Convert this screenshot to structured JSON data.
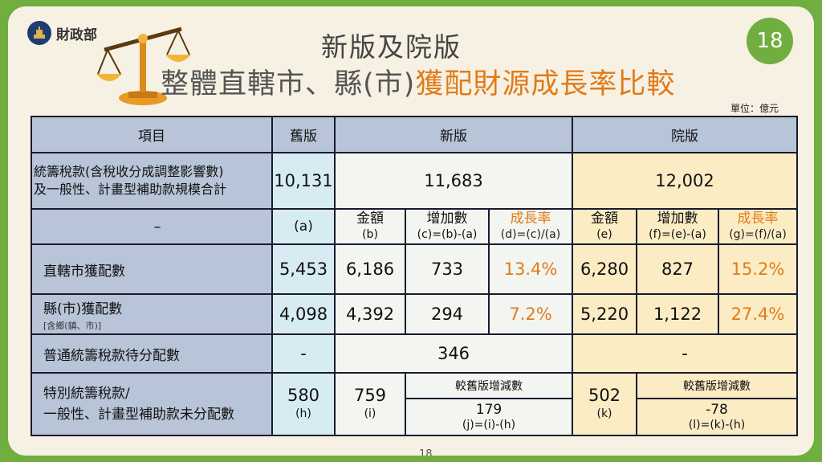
{
  "logo": {
    "org": "財政部"
  },
  "page": {
    "badge": "18",
    "footer_number": "18"
  },
  "title": {
    "line1": "新版及院版",
    "line2_part1": "整體直轄市、縣(市)",
    "line2_part2": "獲配財源成長率比較"
  },
  "unit": "單位：億元",
  "colors": {
    "accent_orange": "#e07b1a",
    "header_blue": "#b8c4d8",
    "green": "#6fae3f"
  },
  "table": {
    "headers": {
      "item": "項目",
      "old": "舊版",
      "new": "新版",
      "yuan": "院版"
    },
    "total_row": {
      "label_line1": "統籌稅款(含稅收分成調整影響數)",
      "label_line2": "及一般性、計畫型補助款規模合計",
      "old": "10,131",
      "new": "11,683",
      "yuan": "12,002"
    },
    "sub_header": {
      "label": "–",
      "old": "(a)",
      "new_amount": "金額",
      "new_amount_f": "(b)",
      "new_inc": "增加數",
      "new_inc_f": "(c)=(b)-(a)",
      "new_rate": "成長率",
      "new_rate_f": "(d)=(c)/(a)",
      "yuan_amount": "金額",
      "yuan_amount_f": "(e)",
      "yuan_inc": "增加數",
      "yuan_inc_f": "(f)=(e)-(a)",
      "yuan_rate": "成長率",
      "yuan_rate_f": "(g)=(f)/(a)"
    },
    "row_municipal": {
      "label": "直轄市獲配數",
      "old": "5,453",
      "new_amount": "6,186",
      "new_inc": "733",
      "new_rate": "13.4%",
      "yuan_amount": "6,280",
      "yuan_inc": "827",
      "yuan_rate": "15.2%"
    },
    "row_county": {
      "label": "縣(市)獲配數",
      "note": "[含鄉(鎮、市)]",
      "old": "4,098",
      "new_amount": "4,392",
      "new_inc": "294",
      "new_rate": "7.2%",
      "yuan_amount": "5,220",
      "yuan_inc": "1,122",
      "yuan_rate": "27.4%"
    },
    "row_pending": {
      "label": "普通統籌稅款待分配數",
      "old": "-",
      "new": "346",
      "yuan": "-"
    },
    "row_special": {
      "label_line1": "特別統籌稅款/",
      "label_line2": "一般性、計畫型補助款未分配數",
      "old": "580",
      "old_f": "(h)",
      "new_amount": "759",
      "new_amount_f": "(i)",
      "new_diff_head": "較舊版增減數",
      "new_diff": "179",
      "new_diff_f": "(j)=(i)-(h)",
      "yuan_amount": "502",
      "yuan_amount_f": "(k)",
      "yuan_diff_head": "較舊版增減數",
      "yuan_diff": "-78",
      "yuan_diff_f": "(l)=(k)-(h)"
    }
  }
}
